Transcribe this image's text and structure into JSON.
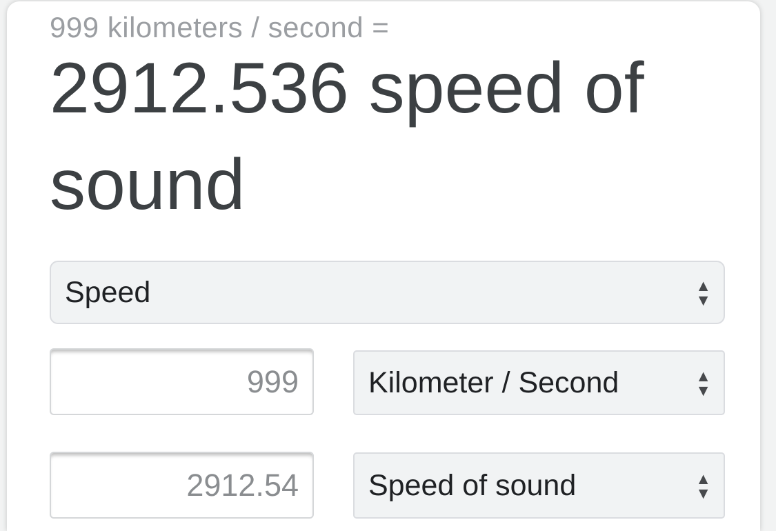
{
  "header": {
    "query": "999 kilometers / second =",
    "result": "2912.536 speed of sound"
  },
  "category_select": {
    "value": "Speed"
  },
  "from_row": {
    "amount": "999",
    "unit": "Kilometer / Second"
  },
  "to_row": {
    "amount": "2912.54",
    "unit": "Speed of sound"
  },
  "icons": {
    "select_arrow_up": "▲",
    "select_arrow_down": "▼"
  },
  "colors": {
    "result_text": "#3c4043",
    "muted_text": "#9b9ea2",
    "control_bg": "#f1f3f4",
    "control_border": "#dadce0",
    "input_text": "#8a8d90",
    "select_text": "#1f2124",
    "arrow_icon": "#47494c",
    "card_bg": "#ffffff"
  }
}
